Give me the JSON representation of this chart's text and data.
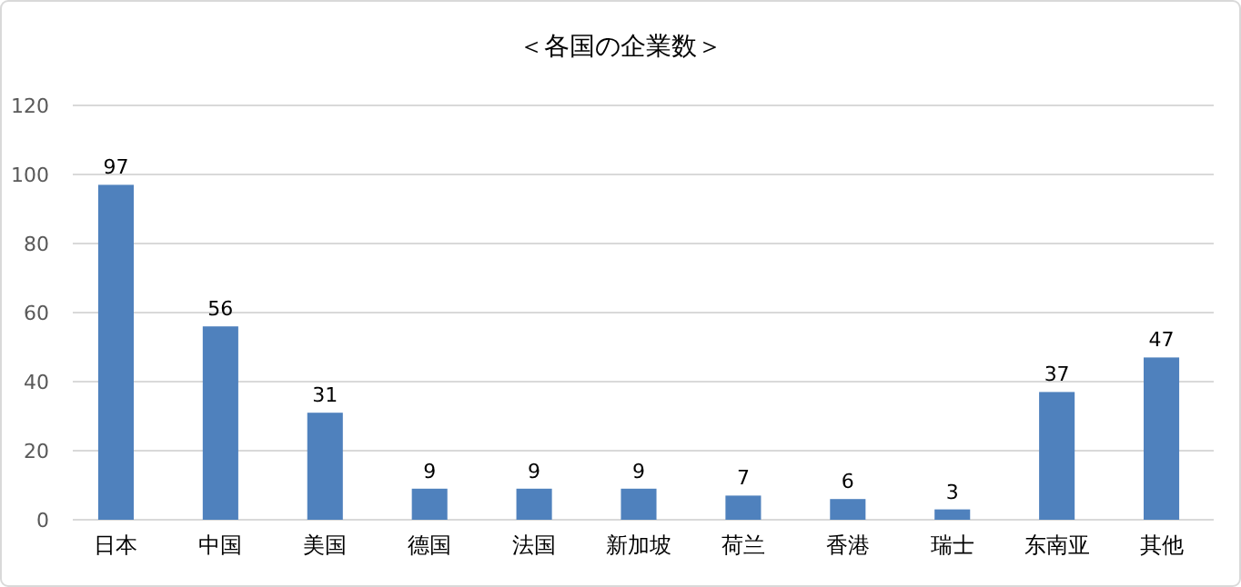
{
  "chart_data": {
    "type": "bar",
    "title": "＜各国の企業数＞",
    "categories": [
      "日本",
      "中国",
      "美国",
      "德国",
      "法国",
      "新加坡",
      "荷兰",
      "香港",
      "瑞士",
      "东南亚",
      "其他"
    ],
    "values": [
      97,
      56,
      31,
      9,
      9,
      9,
      7,
      6,
      3,
      37,
      47
    ],
    "color": "#4f81bd",
    "ylim": [
      0,
      120
    ],
    "yticks": [
      0,
      20,
      40,
      60,
      80,
      100,
      120
    ],
    "grid": "y",
    "data_labels": true
  }
}
